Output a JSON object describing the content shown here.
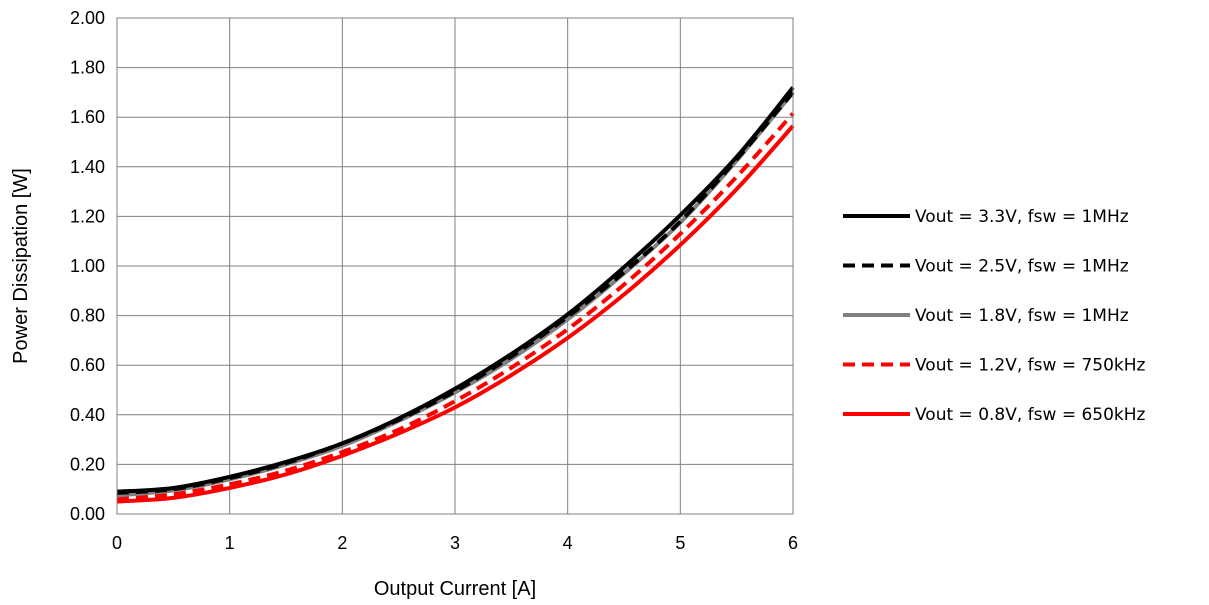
{
  "chart_data": {
    "type": "line",
    "title": "",
    "xlabel": "Output Current [A]",
    "ylabel": "Power Dissipation [W]",
    "xlim": [
      0,
      6
    ],
    "ylim": [
      0,
      2.0
    ],
    "x_ticks": [
      0,
      1,
      2,
      3,
      4,
      5,
      6
    ],
    "x_tick_labels": [
      "0",
      "1",
      "2",
      "3",
      "4",
      "5",
      "6"
    ],
    "y_ticks": [
      0,
      0.2,
      0.4,
      0.6,
      0.8,
      1.0,
      1.2,
      1.4,
      1.6,
      1.8,
      2.0
    ],
    "y_tick_labels": [
      "0.00",
      "0.20",
      "0.40",
      "0.60",
      "0.80",
      "1.00",
      "1.20",
      "1.40",
      "1.60",
      "1.80",
      "2.00"
    ],
    "grid": true,
    "legend_position": "right",
    "x": [
      0,
      0.5,
      1,
      1.5,
      2,
      2.5,
      3,
      3.5,
      4,
      4.5,
      5,
      5.5,
      6
    ],
    "series": [
      {
        "name": "Vout = 3.3V, fsw = 1MHz",
        "color": "#000000",
        "dash": "solid",
        "values": [
          0.09,
          0.105,
          0.15,
          0.21,
          0.285,
          0.385,
          0.505,
          0.645,
          0.805,
          0.995,
          1.205,
          1.44,
          1.72
        ]
      },
      {
        "name": "Vout = 2.5V, fsw = 1MHz",
        "color": "#000000",
        "dash": "dashed",
        "values": [
          0.085,
          0.1,
          0.145,
          0.205,
          0.285,
          0.38,
          0.495,
          0.635,
          0.795,
          0.975,
          1.18,
          1.43,
          1.7
        ]
      },
      {
        "name": "Vout = 1.8V, fsw = 1MHz",
        "color": "#808080",
        "dash": "solid",
        "values": [
          0.075,
          0.095,
          0.14,
          0.2,
          0.275,
          0.375,
          0.49,
          0.625,
          0.785,
          0.97,
          1.175,
          1.425,
          1.7
        ]
      },
      {
        "name": "Vout = 1.2V, fsw = 750kHz",
        "color": "#ff0000",
        "dash": "dashed",
        "values": [
          0.065,
          0.08,
          0.12,
          0.175,
          0.25,
          0.34,
          0.455,
          0.59,
          0.745,
          0.925,
          1.13,
          1.36,
          1.615
        ]
      },
      {
        "name": "Vout = 0.8V, fsw = 650kHz",
        "color": "#ff0000",
        "dash": "solid",
        "values": [
          0.05,
          0.065,
          0.105,
          0.16,
          0.235,
          0.325,
          0.43,
          0.56,
          0.71,
          0.885,
          1.085,
          1.31,
          1.565
        ]
      }
    ]
  }
}
